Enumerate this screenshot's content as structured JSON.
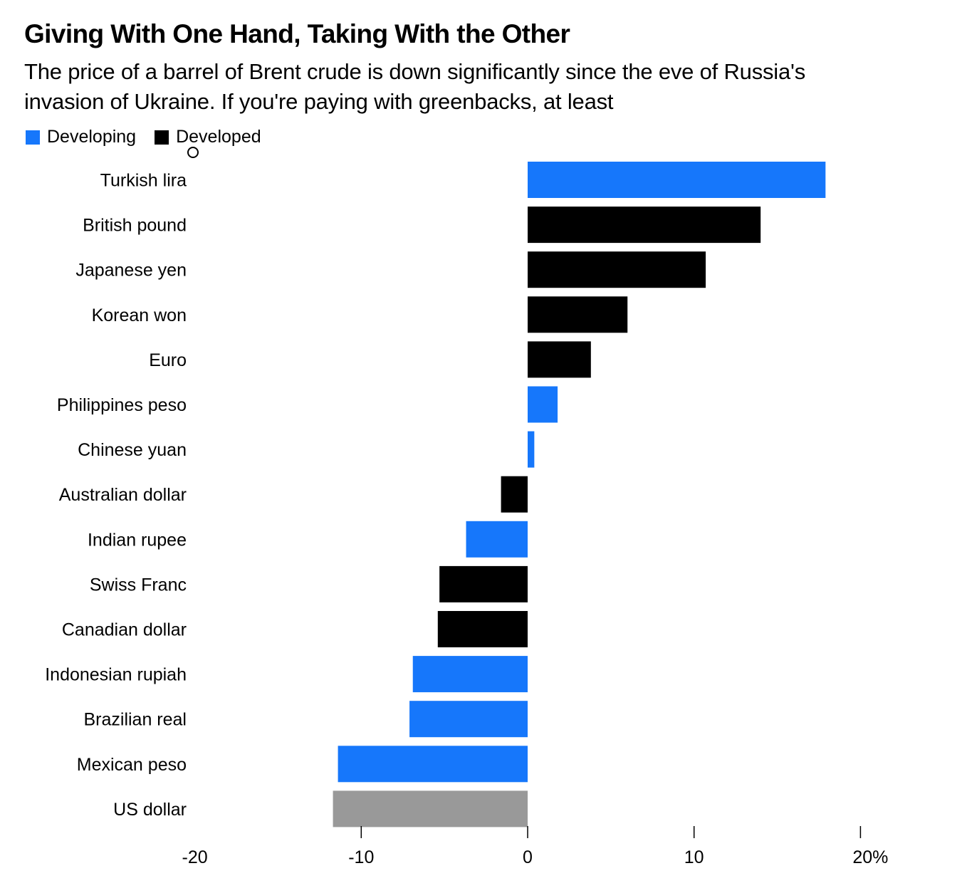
{
  "header": {
    "title": "Giving With One Hand, Taking With the Other",
    "subtitle": "The price of a barrel of Brent crude is down significantly since the eve of Russia's invasion of Ukraine. If you're paying with greenbacks, at least"
  },
  "legend": {
    "items": [
      {
        "label": "Developing",
        "color": "#1677fb"
      },
      {
        "label": "Developed",
        "color": "#000000"
      }
    ]
  },
  "chart_data": {
    "type": "bar",
    "orientation": "horizontal",
    "title": "Giving With One Hand, Taking With the Other",
    "subtitle": "The price of a barrel of Brent crude is down significantly since the eve of Russia's invasion of Ukraine. If you're paying with greenbacks, at least",
    "xlabel": "",
    "ylabel": "",
    "xlim": [
      -20,
      20
    ],
    "x_ticks": [
      -20,
      -10,
      0,
      10,
      20
    ],
    "x_tick_labels": [
      "-20",
      "-10",
      "0",
      "10",
      "20%"
    ],
    "grid": false,
    "legend_position": "top-left",
    "colors": {
      "Developing": "#1677fb",
      "Developed": "#000000",
      "US": "#999999"
    },
    "categories": [
      "Turkish lira",
      "British pound",
      "Japanese yen",
      "Korean won",
      "Euro",
      "Philippines peso",
      "Chinese yuan",
      "Australian dollar",
      "Indian rupee",
      "Swiss Franc",
      "Canadian dollar",
      "Indonesian rupiah",
      "Brazilian real",
      "Mexican peso",
      "US dollar"
    ],
    "values": [
      17.9,
      14.0,
      10.7,
      6.0,
      3.8,
      1.8,
      0.4,
      -1.6,
      -3.7,
      -5.3,
      -5.4,
      -6.9,
      -7.1,
      -11.4,
      -11.7
    ],
    "groups": [
      "Developing",
      "Developed",
      "Developed",
      "Developed",
      "Developed",
      "Developing",
      "Developing",
      "Developed",
      "Developing",
      "Developed",
      "Developed",
      "Developing",
      "Developing",
      "Developing",
      "US"
    ]
  }
}
